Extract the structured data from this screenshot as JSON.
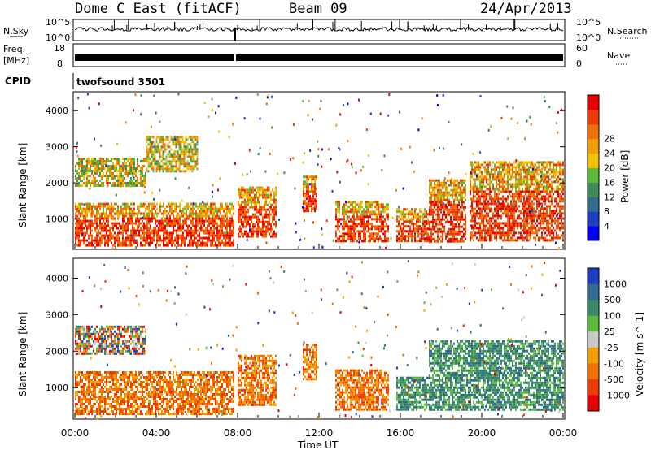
{
  "header": {
    "station": "Dome C East (fitACF)",
    "beam": "Beam 09",
    "date": "24/Apr/2013"
  },
  "noise_panel": {
    "left_label": "N.Sky",
    "left_ticks": [
      "10^5",
      "10^0"
    ],
    "right_label": "N.Search",
    "right_ticks": [
      "10^5",
      "10^0"
    ]
  },
  "freq_panel": {
    "left_label_1": "Freq.",
    "left_label_2": "[MHz]",
    "left_ticks": [
      "18",
      "8"
    ],
    "right_label": "Nave",
    "right_ticks": [
      "60",
      "0"
    ]
  },
  "cpid": {
    "label": "CPID",
    "value": "twofsound 3501"
  },
  "colors": {
    "noise_trace": "#000000",
    "scatter_ground": "#1c1cc8"
  },
  "chart_data": [
    {
      "type": "heatmap",
      "panel": "power",
      "title": "",
      "xlabel": "Time UT",
      "ylabel": "Slant Range [km]",
      "xlim": [
        0,
        24
      ],
      "ylim": [
        180,
        4500
      ],
      "x_ticks": [
        "00:00",
        "04:00",
        "08:00",
        "12:00",
        "16:00",
        "20:00",
        "00:00"
      ],
      "y_ticks": [
        1000,
        2000,
        3000,
        4000
      ],
      "colorbar": {
        "label": "Power [dB]",
        "ticks": [
          "4",
          "8",
          "12",
          "16",
          "20",
          "24",
          "28"
        ],
        "bands": [
          "#0000ff",
          "#1f3fbf",
          "#2f6b8f",
          "#3d8c5a",
          "#5dbb3a",
          "#f2c200",
          "#f2a000",
          "#f07000",
          "#ee3c00",
          "#e60000"
        ]
      },
      "echo_regions": [
        {
          "t0": 0.0,
          "t1": 7.8,
          "r0": 300,
          "r1": 1450,
          "intensity": "high"
        },
        {
          "t0": 0.0,
          "t1": 3.5,
          "r0": 1900,
          "r1": 2700,
          "intensity": "medium"
        },
        {
          "t0": 3.5,
          "t1": 6.0,
          "r0": 2300,
          "r1": 3300,
          "intensity": "medium"
        },
        {
          "t0": 8.0,
          "t1": 9.9,
          "r0": 500,
          "r1": 1900,
          "intensity": "high"
        },
        {
          "t0": 11.2,
          "t1": 11.9,
          "r0": 1200,
          "r1": 2200,
          "intensity": "high"
        },
        {
          "t0": 12.8,
          "t1": 15.4,
          "r0": 400,
          "r1": 1500,
          "intensity": "high"
        },
        {
          "t0": 15.8,
          "t1": 17.4,
          "r0": 400,
          "r1": 1300,
          "intensity": "high"
        },
        {
          "t0": 17.4,
          "t1": 19.2,
          "r0": 400,
          "r1": 2100,
          "intensity": "high"
        },
        {
          "t0": 19.4,
          "t1": 24.0,
          "r0": 400,
          "r1": 2600,
          "intensity": "high"
        }
      ]
    },
    {
      "type": "heatmap",
      "panel": "velocity",
      "title": "",
      "xlabel": "Time UT",
      "ylabel": "Slant Range [km]",
      "xlim": [
        0,
        24
      ],
      "ylim": [
        180,
        4500
      ],
      "x_ticks": [
        "00:00",
        "04:00",
        "08:00",
        "12:00",
        "16:00",
        "20:00",
        "00:00"
      ],
      "y_ticks": [
        1000,
        2000,
        3000,
        4000
      ],
      "colorbar": {
        "label": "Velocity [m s^-1]",
        "ticks": [
          "1000",
          "500",
          "100",
          "25",
          "-25",
          "-100",
          "-500",
          "-1000"
        ],
        "bands": [
          "#1f3fbf",
          "#2f6b8f",
          "#3a8a6a",
          "#5dbb3a",
          "#c8c8c8",
          "#f2a000",
          "#f07000",
          "#ee3c00",
          "#e60000"
        ]
      },
      "echo_regions": [
        {
          "t0": 0.0,
          "t1": 7.8,
          "r0": 300,
          "r1": 1450,
          "intensity": "negative"
        },
        {
          "t0": 0.0,
          "t1": 3.5,
          "r0": 1900,
          "r1": 2700,
          "intensity": "mixed"
        },
        {
          "t0": 8.0,
          "t1": 9.9,
          "r0": 500,
          "r1": 1900,
          "intensity": "negative"
        },
        {
          "t0": 11.2,
          "t1": 11.9,
          "r0": 1200,
          "r1": 2200,
          "intensity": "negative"
        },
        {
          "t0": 12.8,
          "t1": 15.4,
          "r0": 400,
          "r1": 1500,
          "intensity": "negative"
        },
        {
          "t0": 15.8,
          "t1": 17.4,
          "r0": 400,
          "r1": 1300,
          "intensity": "positive"
        },
        {
          "t0": 17.4,
          "t1": 24.0,
          "r0": 400,
          "r1": 2300,
          "intensity": "positive"
        }
      ]
    }
  ]
}
